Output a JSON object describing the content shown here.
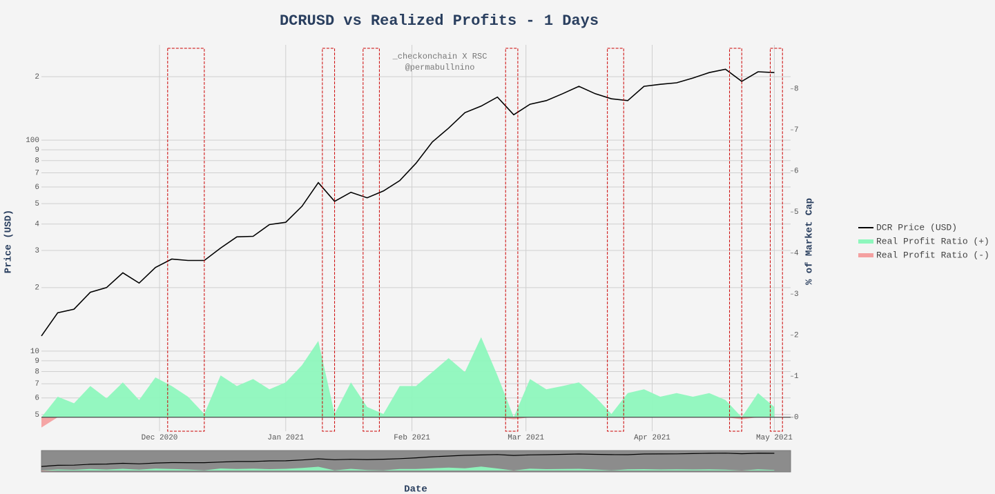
{
  "chart_data": {
    "type": "line",
    "title": "DCRUSD vs Realized Profits - 1 Days",
    "annotations": [
      "_checkonchain X RSC",
      "@permabullnino"
    ],
    "xlabel": "Date",
    "ylabel": "Price (USD)",
    "y2label": "% of Market Cap",
    "yscale": "log",
    "grid": true,
    "legend": "right",
    "x": [
      "2020-11-02",
      "2020-11-06",
      "2020-11-10",
      "2020-11-14",
      "2020-11-18",
      "2020-11-22",
      "2020-11-26",
      "2020-11-30",
      "2020-12-04",
      "2020-12-08",
      "2020-12-12",
      "2020-12-16",
      "2020-12-20",
      "2020-12-24",
      "2020-12-28",
      "2021-01-01",
      "2021-01-05",
      "2021-01-09",
      "2021-01-13",
      "2021-01-17",
      "2021-01-21",
      "2021-01-25",
      "2021-01-29",
      "2021-02-02",
      "2021-02-06",
      "2021-02-10",
      "2021-02-14",
      "2021-02-18",
      "2021-02-22",
      "2021-02-26",
      "2021-03-02",
      "2021-03-06",
      "2021-03-10",
      "2021-03-14",
      "2021-03-18",
      "2021-03-22",
      "2021-03-26",
      "2021-03-30",
      "2021-04-03",
      "2021-04-07",
      "2021-04-11",
      "2021-04-15",
      "2021-04-19",
      "2021-04-23",
      "2021-04-27",
      "2021-05-01"
    ],
    "series": [
      {
        "name": "DCR Price (USD)",
        "color": "#000000",
        "mark": "line",
        "values": [
          11.8,
          15.2,
          15.8,
          19,
          20,
          23.5,
          21,
          24.9,
          27.3,
          26.9,
          26.9,
          30.8,
          34.8,
          35,
          39.8,
          40.8,
          48.6,
          62.9,
          51.3,
          56.6,
          53.3,
          57.4,
          64.3,
          77.7,
          98,
          114,
          135,
          145,
          160,
          132,
          148,
          154,
          166,
          180,
          166,
          157,
          154,
          180,
          184,
          187,
          197,
          209,
          217,
          190,
          211,
          209
        ]
      },
      {
        "name": "Real Profit Ratio (+)",
        "color": "#8ef7bd",
        "mark": "area",
        "axis": "y2",
        "values": [
          0,
          0.5,
          0.34,
          0.76,
          0.46,
          0.85,
          0.42,
          0.97,
          0.76,
          0.5,
          0.08,
          1.02,
          0.76,
          0.93,
          0.68,
          0.85,
          1.27,
          1.86,
          0.08,
          0.85,
          0.25,
          0.08,
          0.76,
          0.76,
          1.1,
          1.44,
          1.1,
          1.95,
          1.02,
          0,
          0.93,
          0.68,
          0.76,
          0.85,
          0.5,
          0.08,
          0.59,
          0.68,
          0.5,
          0.59,
          0.5,
          0.59,
          0.42,
          0,
          0.59,
          0.25
        ]
      },
      {
        "name": "Real Profit Ratio (-)",
        "color": "#f4a0a0",
        "mark": "area",
        "axis": "y2",
        "values": [
          -0.25,
          0,
          0,
          0,
          0,
          0,
          0,
          0,
          0,
          0,
          0,
          0,
          0,
          0,
          0,
          0,
          0,
          0,
          0,
          0,
          0,
          0,
          0,
          0,
          0,
          0,
          0,
          0,
          0,
          -0.05,
          0,
          0,
          0,
          0,
          0,
          0,
          0,
          0,
          0,
          0,
          0,
          0,
          0,
          -0.05,
          0,
          0
        ]
      }
    ],
    "xlim": [
      "2020-11-02",
      "2021-05-05"
    ],
    "xticks": [
      {
        "value": "2020-12-01",
        "label": "Dec 2020"
      },
      {
        "value": "2021-01-01",
        "label": "Jan 2021"
      },
      {
        "value": "2021-02-01",
        "label": "Feb 2021"
      },
      {
        "value": "2021-03-01",
        "label": "Mar 2021"
      },
      {
        "value": "2021-04-01",
        "label": "Apr 2021"
      },
      {
        "value": "2021-05-01",
        "label": "May 2021"
      }
    ],
    "ylim": [
      4.17,
      283
    ],
    "yticks": [
      5,
      6,
      7,
      8,
      9,
      10,
      {
        "value": 20,
        "label": "2"
      },
      {
        "value": 30,
        "label": "3"
      },
      {
        "value": 40,
        "label": "4"
      },
      {
        "value": 50,
        "label": "5"
      },
      {
        "value": 60,
        "label": "6"
      },
      {
        "value": 70,
        "label": "7"
      },
      {
        "value": 80,
        "label": "8"
      },
      {
        "value": 90,
        "label": "9"
      },
      100,
      {
        "value": 200,
        "label": "2"
      }
    ],
    "y2lim": [
      -0.34,
      9.07
    ],
    "y2ticks": [
      0,
      1,
      2,
      3,
      4,
      5,
      6,
      7,
      8
    ],
    "highlight_color": "#cc0000",
    "highlight_ranges": [
      [
        "2020-12-03",
        "2020-12-12"
      ],
      [
        "2021-01-10",
        "2021-01-13"
      ],
      [
        "2021-01-20",
        "2021-01-24"
      ],
      [
        "2021-02-24",
        "2021-02-27"
      ],
      [
        "2021-03-21",
        "2021-03-25"
      ],
      [
        "2021-04-20",
        "2021-04-23"
      ],
      [
        "2021-04-30",
        "2021-05-03"
      ]
    ]
  }
}
